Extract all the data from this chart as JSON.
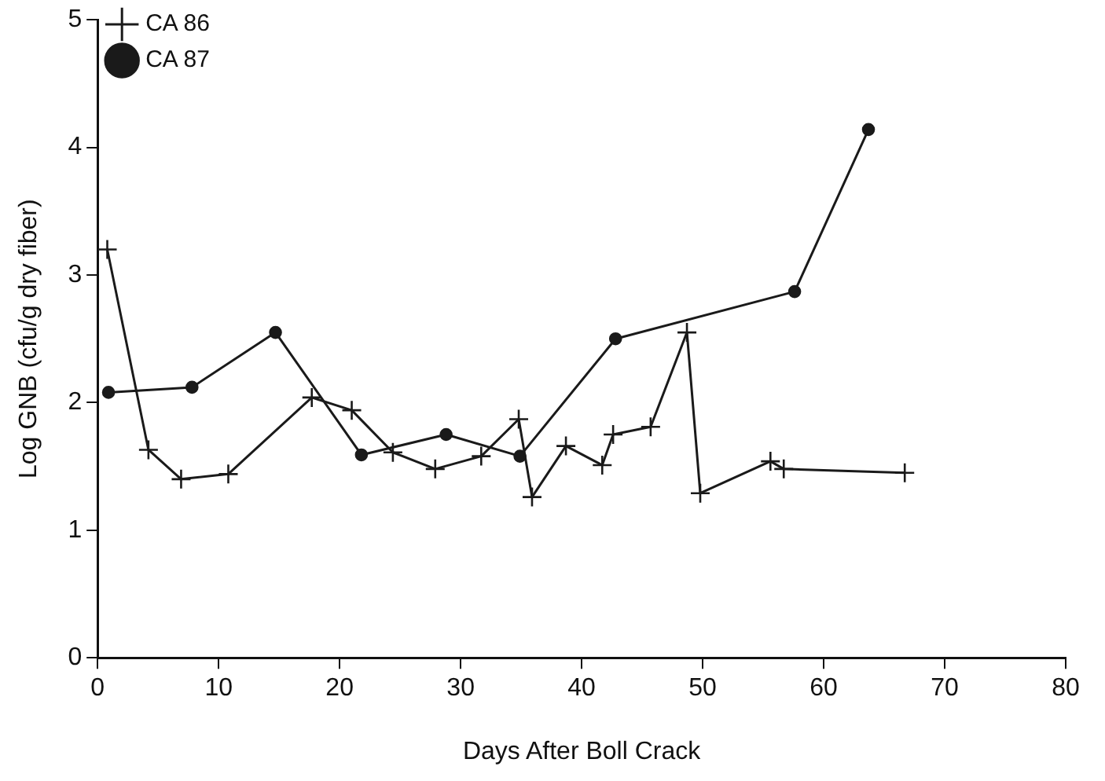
{
  "chart_data": {
    "type": "line",
    "xlabel": "Days After Boll Crack",
    "ylabel": "Log GNB (cfu/g dry fiber)",
    "series": [
      {
        "name": "CA 86",
        "color": "#1a1a1a",
        "marker": "cross",
        "x": [
          0.8,
          4.2,
          6.9,
          10.8,
          17.7,
          21,
          24.4,
          27.9,
          31.7,
          34.8,
          35.9,
          38.7,
          41.7,
          42.6,
          45.7,
          48.7,
          49.8,
          55.6,
          56.7,
          66.7
        ],
        "values": [
          3.2,
          1.63,
          1.4,
          1.44,
          2.04,
          1.94,
          1.61,
          1.48,
          1.58,
          1.87,
          1.26,
          1.66,
          1.51,
          1.75,
          1.81,
          2.55,
          1.29,
          1.54,
          1.48,
          1.45
        ]
      },
      {
        "name": "CA 87",
        "color": "#1a1a1a",
        "marker": "circle",
        "x": [
          0.9,
          7.8,
          14.7,
          21.8,
          28.8,
          34.9,
          42.8,
          57.6,
          63.7
        ],
        "values": [
          2.08,
          2.12,
          2.55,
          1.59,
          1.75,
          1.58,
          2.5,
          2.87,
          4.14
        ]
      }
    ],
    "xlim": [
      0,
      80
    ],
    "xticks": [
      0,
      10,
      20,
      30,
      40,
      50,
      60,
      70,
      80
    ],
    "ylim": [
      0,
      5
    ],
    "yticks": [
      0,
      1,
      2,
      3,
      4,
      5
    ],
    "grid": false,
    "legend": "top left",
    "line_style": "solid"
  }
}
